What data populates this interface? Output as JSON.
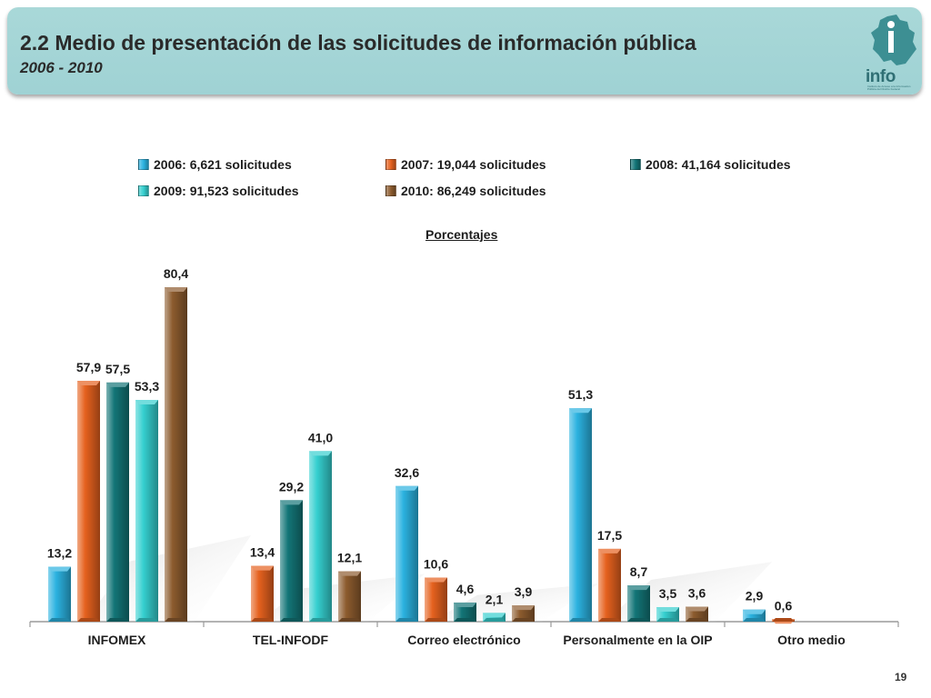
{
  "header": {
    "title": "2.2 Medio de presentación de las solicitudes de información pública",
    "subtitle": "2006 - 2010",
    "logo_text": "info",
    "logo_small": "Instituto de Acceso a la Información Pública del Distrito Federal"
  },
  "page_number": "19",
  "chart_data": {
    "type": "bar",
    "title": "",
    "subtitle": "Porcentajes",
    "xlabel": "",
    "ylabel": "",
    "ylim": [
      0,
      90
    ],
    "legend_position": "top",
    "categories": [
      "INFOMEX",
      "TEL-INFODF",
      "Correo electrónico",
      "Personalmente en la OIP",
      "Otro medio"
    ],
    "series": [
      {
        "name": "2006: 6,621 solicitudes",
        "color": "#2bb2e0",
        "values": [
          13.2,
          null,
          32.6,
          51.3,
          2.9
        ],
        "labels": [
          "13,2",
          "",
          "32,6",
          "51,3",
          "2,9"
        ]
      },
      {
        "name": "2007: 19,044 solicitudes",
        "color": "#e5611e",
        "values": [
          57.9,
          13.4,
          10.6,
          17.5,
          0.6
        ],
        "labels": [
          "57,9",
          "13,4",
          "10,6",
          "17,5",
          "0,6"
        ]
      },
      {
        "name": "2008: 41,164 solicitudes",
        "color": "#137577",
        "values": [
          57.5,
          29.2,
          4.6,
          8.7,
          null
        ],
        "labels": [
          "57,5",
          "29,2",
          "4,6",
          "8,7",
          ""
        ]
      },
      {
        "name": "2009: 91,523 solicitudes",
        "color": "#35cfcf",
        "values": [
          53.3,
          41.0,
          2.1,
          3.5,
          null
        ],
        "labels": [
          "53,3",
          "41,0",
          "2,1",
          "3,5",
          ""
        ]
      },
      {
        "name": "2010: 86,249 solicitudes",
        "color": "#8c5b2e",
        "values": [
          80.4,
          12.1,
          3.9,
          3.6,
          null
        ],
        "labels": [
          "80,4",
          "12,1",
          "3,9",
          "3,6",
          ""
        ]
      }
    ]
  }
}
